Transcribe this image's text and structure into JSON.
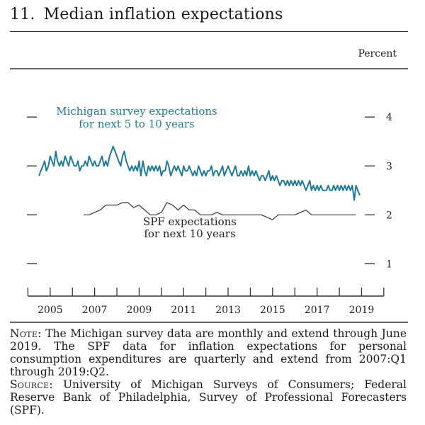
{
  "figure": {
    "number": "11.",
    "title": "Median inflation expectations"
  },
  "chart_data": {
    "type": "line",
    "unit_label": "Percent",
    "ylim": [
      0.6,
      4.8
    ],
    "xlim": [
      2004.2,
      2020.6
    ],
    "y_ticks": [
      1,
      2,
      3,
      4
    ],
    "x_tick_labels": [
      "2005",
      "2007",
      "2009",
      "2011",
      "2013",
      "2015",
      "2017",
      "2019"
    ],
    "series": [
      {
        "name": "Michigan survey expectations for next 5 to 10 years",
        "label_lines": [
          "Michigan survey expectations",
          "for next 5 to 10 years"
        ],
        "color": "#1f7a94",
        "frequency": "monthly",
        "x": [
          2005.0,
          2005.08,
          2005.17,
          2005.25,
          2005.33,
          2005.42,
          2005.5,
          2005.58,
          2005.67,
          2005.75,
          2005.83,
          2005.92,
          2006.0,
          2006.08,
          2006.17,
          2006.25,
          2006.33,
          2006.42,
          2006.5,
          2006.58,
          2006.67,
          2006.75,
          2006.83,
          2006.92,
          2007.0,
          2007.08,
          2007.17,
          2007.25,
          2007.33,
          2007.42,
          2007.5,
          2007.58,
          2007.67,
          2007.75,
          2007.83,
          2007.92,
          2008.0,
          2008.08,
          2008.17,
          2008.25,
          2008.33,
          2008.42,
          2008.5,
          2008.58,
          2008.67,
          2008.75,
          2008.83,
          2008.92,
          2009.0,
          2009.08,
          2009.17,
          2009.25,
          2009.33,
          2009.42,
          2009.5,
          2009.58,
          2009.67,
          2009.75,
          2009.83,
          2009.92,
          2010.0,
          2010.08,
          2010.17,
          2010.25,
          2010.33,
          2010.42,
          2010.5,
          2010.58,
          2010.67,
          2010.75,
          2010.83,
          2010.92,
          2011.0,
          2011.08,
          2011.17,
          2011.25,
          2011.33,
          2011.42,
          2011.5,
          2011.58,
          2011.67,
          2011.75,
          2011.83,
          2011.92,
          2012.0,
          2012.08,
          2012.17,
          2012.25,
          2012.33,
          2012.42,
          2012.5,
          2012.58,
          2012.67,
          2012.75,
          2012.83,
          2012.92,
          2013.0,
          2013.08,
          2013.17,
          2013.25,
          2013.33,
          2013.42,
          2013.5,
          2013.58,
          2013.67,
          2013.75,
          2013.83,
          2013.92,
          2014.0,
          2014.08,
          2014.17,
          2014.25,
          2014.33,
          2014.42,
          2014.5,
          2014.58,
          2014.67,
          2014.75,
          2014.83,
          2014.92,
          2015.0,
          2015.08,
          2015.17,
          2015.25,
          2015.33,
          2015.42,
          2015.5,
          2015.58,
          2015.67,
          2015.75,
          2015.83,
          2015.92,
          2016.0,
          2016.08,
          2016.17,
          2016.25,
          2016.33,
          2016.42,
          2016.5,
          2016.58,
          2016.67,
          2016.75,
          2016.83,
          2016.92,
          2017.0,
          2017.08,
          2017.17,
          2017.25,
          2017.33,
          2017.42,
          2017.5,
          2017.58,
          2017.67,
          2017.75,
          2017.83,
          2017.92,
          2018.0,
          2018.08,
          2018.17,
          2018.25,
          2018.33,
          2018.42,
          2018.5,
          2018.58,
          2018.67,
          2018.75,
          2018.83,
          2018.92,
          2019.0,
          2019.08,
          2019.17,
          2019.25,
          2019.33,
          2019.42
        ],
        "values": [
          2.8,
          2.9,
          3.0,
          3.1,
          2.9,
          3.0,
          3.2,
          3.1,
          3.0,
          3.3,
          3.1,
          3.0,
          3.1,
          3.0,
          3.2,
          3.1,
          3.0,
          3.2,
          3.1,
          3.0,
          3.0,
          3.1,
          2.9,
          3.0,
          3.0,
          3.1,
          3.0,
          3.2,
          3.1,
          3.0,
          3.1,
          3.0,
          3.0,
          3.1,
          3.2,
          3.0,
          3.1,
          3.0,
          3.2,
          3.3,
          3.4,
          3.3,
          3.2,
          3.1,
          3.0,
          3.2,
          3.3,
          3.1,
          3.0,
          2.9,
          3.0,
          2.9,
          3.0,
          2.9,
          3.1,
          2.8,
          3.1,
          2.9,
          2.8,
          3.0,
          2.9,
          3.0,
          2.9,
          3.0,
          2.9,
          3.0,
          2.8,
          2.9,
          2.9,
          3.1,
          3.0,
          2.8,
          2.9,
          3.0,
          2.9,
          3.0,
          2.9,
          2.8,
          3.0,
          2.9,
          2.9,
          3.0,
          2.9,
          2.8,
          2.9,
          2.8,
          3.0,
          2.9,
          2.8,
          2.9,
          2.8,
          2.9,
          2.9,
          3.0,
          2.8,
          2.9,
          2.9,
          2.8,
          2.9,
          3.0,
          2.8,
          2.9,
          3.0,
          2.9,
          2.8,
          2.9,
          3.0,
          2.8,
          2.8,
          2.9,
          2.8,
          2.9,
          2.8,
          3.0,
          2.8,
          2.9,
          2.8,
          2.9,
          2.8,
          2.7,
          2.8,
          2.8,
          2.7,
          2.8,
          2.9,
          2.7,
          2.8,
          2.7,
          2.8,
          2.7,
          2.6,
          2.7,
          2.7,
          2.6,
          2.7,
          2.6,
          2.7,
          2.6,
          2.7,
          2.6,
          2.7,
          2.6,
          2.7,
          2.6,
          2.5,
          2.6,
          2.7,
          2.5,
          2.6,
          2.5,
          2.6,
          2.5,
          2.6,
          2.5,
          2.5,
          2.5,
          2.6,
          2.5,
          2.5,
          2.6,
          2.5,
          2.6,
          2.5,
          2.6,
          2.5,
          2.6,
          2.5,
          2.6,
          2.5,
          2.6,
          2.3,
          2.6,
          2.5,
          2.4
        ]
      },
      {
        "name": "SPF expectations for next 10 years",
        "label_lines": [
          "SPF expectations",
          "for next 10 years"
        ],
        "color": "#333333",
        "frequency": "quarterly",
        "x": [
          2007.0,
          2007.25,
          2007.5,
          2007.75,
          2008.0,
          2008.25,
          2008.5,
          2008.75,
          2009.0,
          2009.25,
          2009.5,
          2009.75,
          2010.0,
          2010.25,
          2010.5,
          2010.75,
          2011.0,
          2011.25,
          2011.5,
          2011.75,
          2012.0,
          2012.25,
          2012.5,
          2012.75,
          2013.0,
          2013.25,
          2013.5,
          2013.75,
          2014.0,
          2014.25,
          2014.5,
          2014.75,
          2015.0,
          2015.25,
          2015.5,
          2015.75,
          2016.0,
          2016.25,
          2016.5,
          2016.75,
          2017.0,
          2017.25,
          2017.5,
          2017.75,
          2018.0,
          2018.25,
          2018.5,
          2018.75,
          2019.0,
          2019.25
        ],
        "values": [
          2.0,
          2.0,
          2.05,
          2.1,
          2.2,
          2.2,
          2.2,
          2.25,
          2.25,
          2.15,
          2.2,
          2.1,
          2.0,
          2.0,
          2.05,
          2.25,
          2.2,
          2.1,
          2.2,
          2.1,
          2.1,
          2.0,
          2.0,
          2.0,
          2.05,
          2.0,
          2.0,
          2.0,
          2.0,
          2.0,
          2.0,
          2.0,
          2.0,
          1.95,
          1.9,
          2.0,
          2.0,
          2.0,
          2.0,
          2.05,
          2.1,
          2.0,
          2.0,
          2.0,
          2.0,
          2.0,
          2.0,
          2.0,
          2.0,
          2.0
        ]
      }
    ]
  },
  "notes": {
    "note_label": "Note:",
    "note_text": " The Michigan survey data are monthly and extend through June 2019. The SPF data for inflation expectations for personal consumption expenditures are quarterly and extend from 2007:Q1 through 2019:Q2.",
    "source_label": "Source:",
    "source_text": " University of Michigan Surveys of Consumers; Federal Reserve Bank of Philadelphia, Survey of Professional Forecasters (SPF)."
  }
}
